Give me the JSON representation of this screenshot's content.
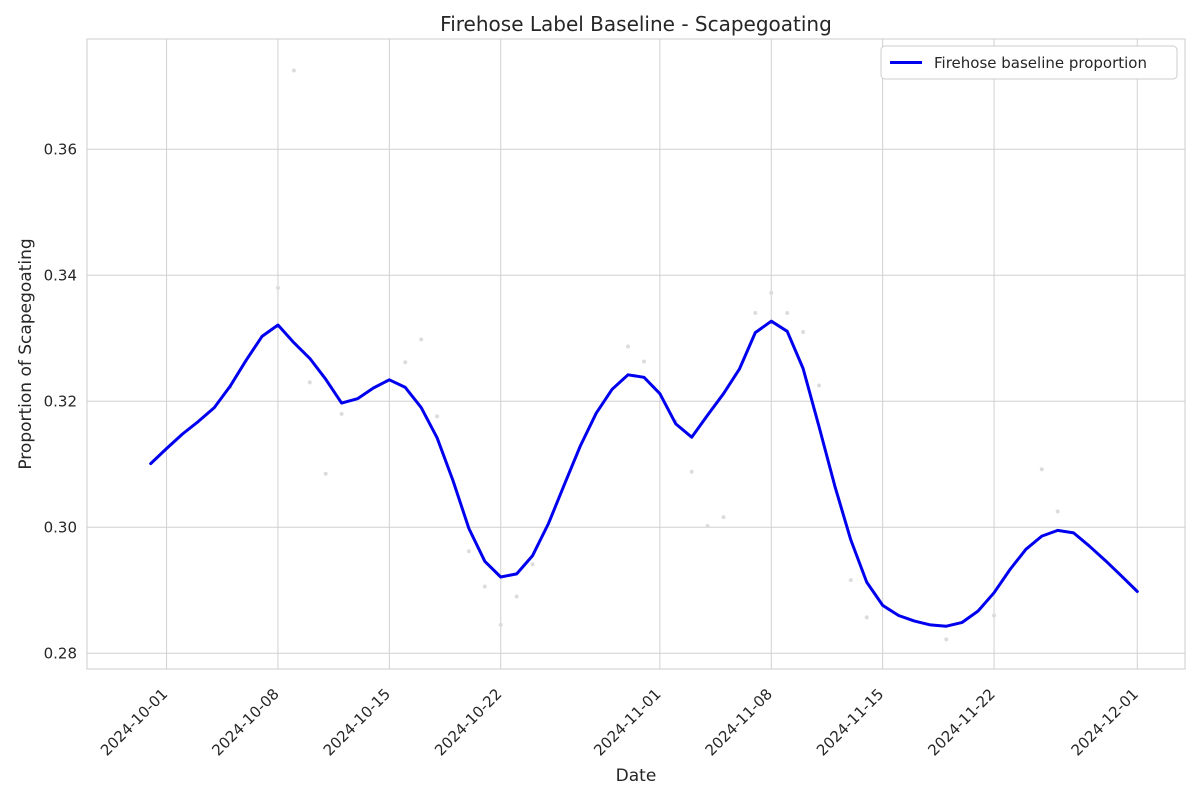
{
  "chart_data": {
    "type": "line",
    "title": "Firehose Label Baseline - Scapegoating",
    "xlabel": "Date",
    "ylabel": "Proportion of Scapegoating",
    "x_range": [
      "2024-09-26",
      "2024-12-04"
    ],
    "ylim": [
      0.2775,
      0.3775
    ],
    "grid": true,
    "legend_position": "top-right",
    "x_ticks": [
      "2024-10-01",
      "2024-10-08",
      "2024-10-15",
      "2024-10-22",
      "2024-11-01",
      "2024-11-08",
      "2024-11-15",
      "2024-11-22",
      "2024-12-01"
    ],
    "y_ticks": [
      0.28,
      0.3,
      0.32,
      0.34,
      0.36
    ],
    "y_tick_labels": [
      "0.28",
      "0.30",
      "0.32",
      "0.34",
      "0.36"
    ],
    "series": [
      {
        "name": "Firehose baseline proportion",
        "color": "#0000ee",
        "points": [
          [
            "2024-09-30",
            0.3101
          ],
          [
            "2024-10-01",
            0.3125
          ],
          [
            "2024-10-02",
            0.3148
          ],
          [
            "2024-10-03",
            0.3168
          ],
          [
            "2024-10-04",
            0.319
          ],
          [
            "2024-10-05",
            0.3224
          ],
          [
            "2024-10-06",
            0.3265
          ],
          [
            "2024-10-07",
            0.3303
          ],
          [
            "2024-10-08",
            0.3321
          ],
          [
            "2024-10-09",
            0.3293
          ],
          [
            "2024-10-10",
            0.3268
          ],
          [
            "2024-10-11",
            0.3235
          ],
          [
            "2024-10-12",
            0.3197
          ],
          [
            "2024-10-13",
            0.3204
          ],
          [
            "2024-10-14",
            0.3221
          ],
          [
            "2024-10-15",
            0.3234
          ],
          [
            "2024-10-16",
            0.3222
          ],
          [
            "2024-10-17",
            0.319
          ],
          [
            "2024-10-18",
            0.3142
          ],
          [
            "2024-10-19",
            0.3074
          ],
          [
            "2024-10-20",
            0.2998
          ],
          [
            "2024-10-21",
            0.2946
          ],
          [
            "2024-10-22",
            0.2921
          ],
          [
            "2024-10-23",
            0.2926
          ],
          [
            "2024-10-24",
            0.2955
          ],
          [
            "2024-10-25",
            0.3006
          ],
          [
            "2024-10-26",
            0.3068
          ],
          [
            "2024-10-27",
            0.3129
          ],
          [
            "2024-10-28",
            0.3181
          ],
          [
            "2024-10-29",
            0.3219
          ],
          [
            "2024-10-30",
            0.3242
          ],
          [
            "2024-10-31",
            0.3238
          ],
          [
            "2024-11-01",
            0.3212
          ],
          [
            "2024-11-02",
            0.3164
          ],
          [
            "2024-11-03",
            0.3143
          ],
          [
            "2024-11-04",
            0.3178
          ],
          [
            "2024-11-05",
            0.3212
          ],
          [
            "2024-11-06",
            0.3251
          ],
          [
            "2024-11-07",
            0.3309
          ],
          [
            "2024-11-08",
            0.3327
          ],
          [
            "2024-11-09",
            0.3311
          ],
          [
            "2024-11-10",
            0.3252
          ],
          [
            "2024-11-11",
            0.316
          ],
          [
            "2024-11-12",
            0.3065
          ],
          [
            "2024-11-13",
            0.298
          ],
          [
            "2024-11-14",
            0.2913
          ],
          [
            "2024-11-15",
            0.2876
          ],
          [
            "2024-11-16",
            0.286
          ],
          [
            "2024-11-17",
            0.2851
          ],
          [
            "2024-11-18",
            0.2845
          ],
          [
            "2024-11-19",
            0.2843
          ],
          [
            "2024-11-20",
            0.2849
          ],
          [
            "2024-11-21",
            0.2867
          ],
          [
            "2024-11-22",
            0.2896
          ],
          [
            "2024-11-23",
            0.2933
          ],
          [
            "2024-11-24",
            0.2965
          ],
          [
            "2024-11-25",
            0.2986
          ],
          [
            "2024-11-26",
            0.2995
          ],
          [
            "2024-11-27",
            0.2991
          ],
          [
            "2024-11-28",
            0.297
          ],
          [
            "2024-11-29",
            0.2947
          ],
          [
            "2024-11-30",
            0.2923
          ],
          [
            "2024-12-01",
            0.2898
          ]
        ]
      }
    ],
    "scatter_points": [
      [
        "2024-10-05",
        0.3222
      ],
      [
        "2024-10-08",
        0.338
      ],
      [
        "2024-10-09",
        0.3725
      ],
      [
        "2024-10-10",
        0.323
      ],
      [
        "2024-10-11",
        0.3085
      ],
      [
        "2024-10-12",
        0.318
      ],
      [
        "2024-10-16",
        0.3262
      ],
      [
        "2024-10-17",
        0.3298
      ],
      [
        "2024-10-18",
        0.3176
      ],
      [
        "2024-10-20",
        0.2962
      ],
      [
        "2024-10-21",
        0.2906
      ],
      [
        "2024-10-22",
        0.2845
      ],
      [
        "2024-10-23",
        0.289
      ],
      [
        "2024-10-24",
        0.2941
      ],
      [
        "2024-10-30",
        0.3287
      ],
      [
        "2024-10-31",
        0.3263
      ],
      [
        "2024-11-02",
        0.3168
      ],
      [
        "2024-11-03",
        0.3088
      ],
      [
        "2024-11-04",
        0.3002
      ],
      [
        "2024-11-05",
        0.3016
      ],
      [
        "2024-11-07",
        0.334
      ],
      [
        "2024-11-08",
        0.3372
      ],
      [
        "2024-11-09",
        0.334
      ],
      [
        "2024-11-10",
        0.331
      ],
      [
        "2024-11-11",
        0.3225
      ],
      [
        "2024-11-13",
        0.2916
      ],
      [
        "2024-11-14",
        0.2857
      ],
      [
        "2024-11-19",
        0.2822
      ],
      [
        "2024-11-22",
        0.286
      ],
      [
        "2024-11-25",
        0.3092
      ],
      [
        "2024-11-26",
        0.3025
      ]
    ],
    "colors": {
      "line": "#0000ee",
      "grid": "#d0d0d0",
      "frame": "#cccccc",
      "scatter": "#dcdcdc",
      "text": "#262626"
    }
  }
}
